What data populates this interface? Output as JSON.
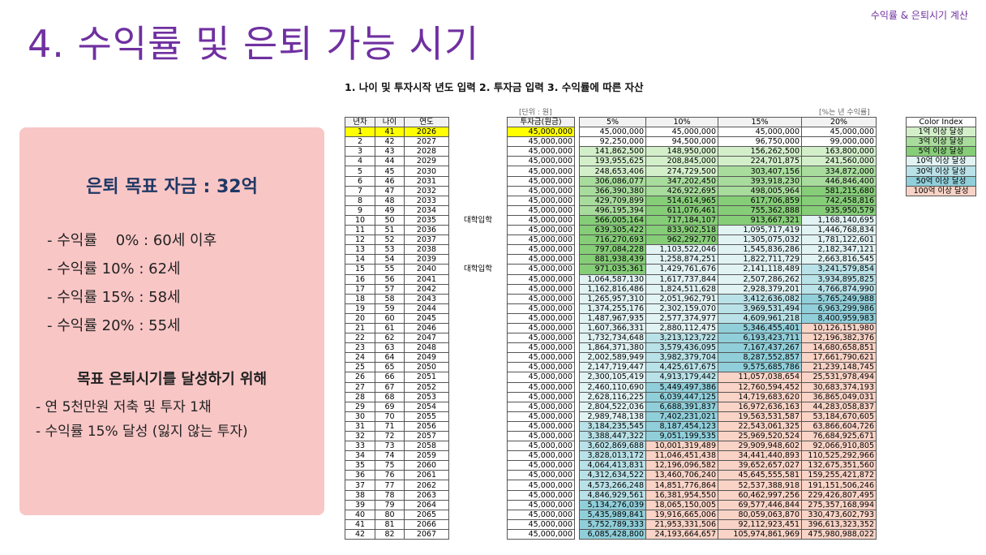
{
  "header_tag": "수익률 & 은퇴시기 계산",
  "title": "4. 수익률 및 은퇴 가능 시기",
  "subtitle": "1. 나이 및 투자시작 년도 입력 2. 투자금 입력 3. 수익률에 따른 자산",
  "panel": {
    "goal": "은퇴 목표 자금 : 32억",
    "items": [
      "- 수익률    0% : 60세 이후",
      "- 수익률 10% : 62세",
      "- 수익률 15% : 58세",
      "- 수익률 20% : 55세"
    ],
    "subheading": "목표 은퇴시기를 달성하기 위해",
    "items2": [
      "- 연 5천만원 저축 및 투자 1채",
      "- 수익률 15% 달성 (잃지 않는 투자)"
    ]
  },
  "table": {
    "unit_note": "[단위 : 원]",
    "rate_note": "[%는 년 수익률]",
    "headers": [
      "년차",
      "나이",
      "연도",
      "투자금(원금)",
      "5%",
      "10%",
      "15%",
      "20%"
    ],
    "rows": [
      {
        "cells": [
          1,
          41,
          2026,
          "45,000,000",
          "45,000,000",
          "45,000,000",
          "45,000,000",
          "45,000,000"
        ]
      },
      {
        "cells": [
          2,
          42,
          2027,
          "45,000,000",
          "92,250,000",
          "94,500,000",
          "96,750,000",
          "99,000,000"
        ]
      },
      {
        "cells": [
          3,
          43,
          2028,
          "45,000,000",
          "141,862,500",
          "148,950,000",
          "156,262,500",
          "163,800,000"
        ]
      },
      {
        "cells": [
          4,
          44,
          2029,
          "45,000,000",
          "193,955,625",
          "208,845,000",
          "224,701,875",
          "241,560,000"
        ]
      },
      {
        "cells": [
          5,
          45,
          2030,
          "45,000,000",
          "248,653,406",
          "274,729,500",
          "303,407,156",
          "334,872,000"
        ]
      },
      {
        "cells": [
          6,
          46,
          2031,
          "45,000,000",
          "306,086,077",
          "347,202,450",
          "393,918,230",
          "446,846,400"
        ]
      },
      {
        "cells": [
          7,
          47,
          2032,
          "45,000,000",
          "366,390,380",
          "426,922,695",
          "498,005,964",
          "581,215,680"
        ]
      },
      {
        "cells": [
          8,
          48,
          2033,
          "45,000,000",
          "429,709,899",
          "514,614,965",
          "617,706,859",
          "742,458,816"
        ]
      },
      {
        "cells": [
          9,
          49,
          2034,
          "45,000,000",
          "496,195,394",
          "611,076,461",
          "755,362,888",
          "935,950,579"
        ]
      },
      {
        "cells": [
          10,
          50,
          2035,
          "45,000,000",
          "566,005,164",
          "717,184,107",
          "913,667,321",
          "1,168,140,695"
        ],
        "note": "대학입학"
      },
      {
        "cells": [
          11,
          51,
          2036,
          "45,000,000",
          "639,305,422",
          "833,902,518",
          "1,095,717,419",
          "1,446,768,834"
        ]
      },
      {
        "cells": [
          12,
          52,
          2037,
          "45,000,000",
          "716,270,693",
          "962,292,770",
          "1,305,075,032",
          "1,781,122,601"
        ]
      },
      {
        "cells": [
          13,
          53,
          2038,
          "45,000,000",
          "797,084,228",
          "1,103,522,046",
          "1,545,836,286",
          "2,182,347,121"
        ]
      },
      {
        "cells": [
          14,
          54,
          2039,
          "45,000,000",
          "881,938,439",
          "1,258,874,251",
          "1,822,711,729",
          "2,663,816,545"
        ]
      },
      {
        "cells": [
          15,
          55,
          2040,
          "45,000,000",
          "971,035,361",
          "1,429,761,676",
          "2,141,118,489",
          "3,241,579,854"
        ],
        "note": "대학입학"
      },
      {
        "cells": [
          16,
          56,
          2041,
          "45,000,000",
          "1,064,587,130",
          "1,617,737,844",
          "2,507,286,262",
          "3,934,895,825"
        ]
      },
      {
        "cells": [
          17,
          57,
          2042,
          "45,000,000",
          "1,162,816,486",
          "1,824,511,628",
          "2,928,379,201",
          "4,766,874,990"
        ]
      },
      {
        "cells": [
          18,
          58,
          2043,
          "45,000,000",
          "1,265,957,310",
          "2,051,962,791",
          "3,412,636,082",
          "5,765,249,988"
        ]
      },
      {
        "cells": [
          19,
          59,
          2044,
          "45,000,000",
          "1,374,255,176",
          "2,302,159,070",
          "3,969,531,494",
          "6,963,299,986"
        ]
      },
      {
        "cells": [
          20,
          60,
          2045,
          "45,000,000",
          "1,487,967,935",
          "2,577,374,977",
          "4,609,961,218",
          "8,400,959,983"
        ]
      },
      {
        "cells": [
          21,
          61,
          2046,
          "45,000,000",
          "1,607,366,331",
          "2,880,112,475",
          "5,346,455,401",
          "10,126,151,980"
        ]
      },
      {
        "cells": [
          22,
          62,
          2047,
          "45,000,000",
          "1,732,734,648",
          "3,213,123,722",
          "6,193,423,711",
          "12,196,382,376"
        ]
      },
      {
        "cells": [
          23,
          63,
          2048,
          "45,000,000",
          "1,864,371,380",
          "3,579,436,095",
          "7,167,437,267",
          "14,680,658,851"
        ]
      },
      {
        "cells": [
          24,
          64,
          2049,
          "45,000,000",
          "2,002,589,949",
          "3,982,379,704",
          "8,287,552,857",
          "17,661,790,621"
        ]
      },
      {
        "cells": [
          25,
          65,
          2050,
          "45,000,000",
          "2,147,719,447",
          "4,425,617,675",
          "9,575,685,786",
          "21,239,148,745"
        ]
      },
      {
        "cells": [
          26,
          66,
          2051,
          "45,000,000",
          "2,300,105,419",
          "4,913,179,442",
          "11,057,038,654",
          "25,531,978,494"
        ]
      },
      {
        "cells": [
          27,
          67,
          2052,
          "45,000,000",
          "2,460,110,690",
          "5,449,497,386",
          "12,760,594,452",
          "30,683,374,193"
        ]
      },
      {
        "cells": [
          28,
          68,
          2053,
          "45,000,000",
          "2,628,116,225",
          "6,039,447,125",
          "14,719,683,620",
          "36,865,049,031"
        ]
      },
      {
        "cells": [
          29,
          69,
          2054,
          "45,000,000",
          "2,804,522,036",
          "6,688,391,837",
          "16,972,636,163",
          "44,283,058,837"
        ]
      },
      {
        "cells": [
          30,
          70,
          2055,
          "45,000,000",
          "2,989,748,138",
          "7,402,231,021",
          "19,563,531,587",
          "53,184,670,605"
        ]
      },
      {
        "cells": [
          31,
          71,
          2056,
          "45,000,000",
          "3,184,235,545",
          "8,187,454,123",
          "22,543,061,325",
          "63,866,604,726"
        ]
      },
      {
        "cells": [
          32,
          72,
          2057,
          "45,000,000",
          "3,388,447,322",
          "9,051,199,535",
          "25,969,520,524",
          "76,684,925,671"
        ]
      },
      {
        "cells": [
          33,
          73,
          2058,
          "45,000,000",
          "3,602,869,688",
          "10,001,319,489",
          "29,909,948,602",
          "92,066,910,805"
        ]
      },
      {
        "cells": [
          34,
          74,
          2059,
          "45,000,000",
          "3,828,013,172",
          "11,046,451,438",
          "34,441,440,893",
          "110,525,292,966"
        ]
      },
      {
        "cells": [
          35,
          75,
          2060,
          "45,000,000",
          "4,064,413,831",
          "12,196,096,582",
          "39,652,657,027",
          "132,675,351,560"
        ]
      },
      {
        "cells": [
          36,
          76,
          2061,
          "45,000,000",
          "4,312,634,522",
          "13,460,706,240",
          "45,645,555,581",
          "159,255,421,872"
        ]
      },
      {
        "cells": [
          37,
          77,
          2062,
          "45,000,000",
          "4,573,266,248",
          "14,851,776,864",
          "52,537,388,918",
          "191,151,506,246"
        ]
      },
      {
        "cells": [
          38,
          78,
          2063,
          "45,000,000",
          "4,846,929,561",
          "16,381,954,550",
          "60,462,997,256",
          "229,426,807,495"
        ]
      },
      {
        "cells": [
          39,
          79,
          2064,
          "45,000,000",
          "5,134,276,039",
          "18,065,150,005",
          "69,577,446,844",
          "275,357,168,994"
        ]
      },
      {
        "cells": [
          40,
          80,
          2065,
          "45,000,000",
          "5,435,989,841",
          "19,916,665,006",
          "80,059,063,870",
          "330,473,602,793"
        ]
      },
      {
        "cells": [
          41,
          81,
          2066,
          "45,000,000",
          "5,752,789,333",
          "21,953,331,506",
          "92,112,923,451",
          "396,613,323,352"
        ]
      },
      {
        "cells": [
          42,
          82,
          2067,
          "45,000,000",
          "6,085,428,800",
          "24,193,664,657",
          "105,974,861,969",
          "475,980,988,022"
        ]
      }
    ]
  },
  "color_index": {
    "title": "Color Index",
    "items": [
      {
        "label": "1억 이상 달성",
        "min": 100000000,
        "color": "#d3efca"
      },
      {
        "label": "3억 이상 달성",
        "min": 300000000,
        "color": "#a8dc9c"
      },
      {
        "label": "5억 이상 달성",
        "min": 500000000,
        "color": "#86cd78"
      },
      {
        "label": "10억 이상 달성",
        "min": 1000000000,
        "color": "#e2f3f3"
      },
      {
        "label": "30억 이상 달성",
        "min": 3000000000,
        "color": "#b9e2e8"
      },
      {
        "label": "50억 이상 달성",
        "min": 5000000000,
        "color": "#90cfda"
      },
      {
        "label": "100억 이상 달성",
        "min": 10000000000,
        "color": "#f9d3c6"
      }
    ]
  }
}
